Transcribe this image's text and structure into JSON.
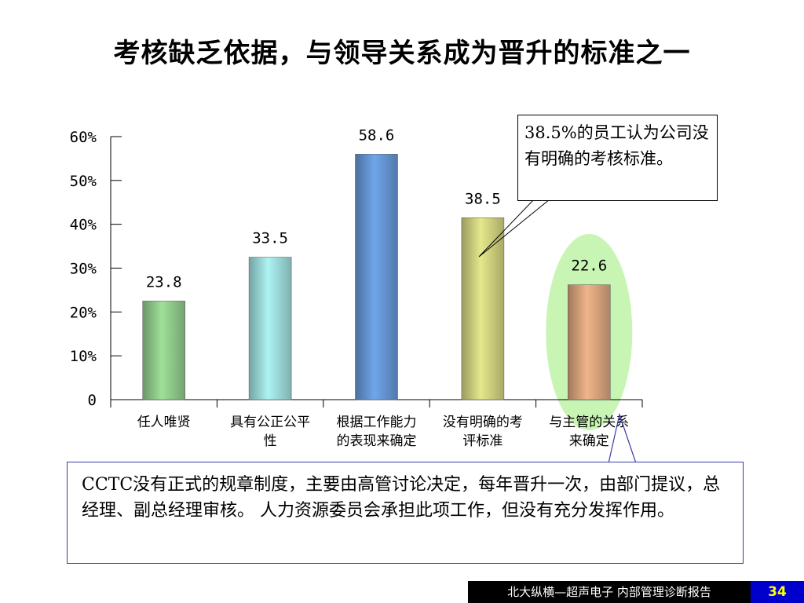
{
  "title": "考核缺乏依据，与领导关系成为晋升的标准之一",
  "callout_text": "38.5%的员工认为公司没有明确的考核标准。",
  "summary_text": "CCTC没有正式的规章制度，主要由高管讨论决定，每年晋升一次，由部门提议，总经理、副总经理审核。 人力资源委员会承担此项工作，但没有充分发挥作用。",
  "footer_text": "北大纵横—超声电子  内部管理诊断报告",
  "page_number": "34",
  "chart_data": {
    "type": "bar",
    "categories": [
      "任人唯贤",
      "具有公正公平性",
      "根据工作能力的表现来确定",
      "没有明确的考评标准",
      "与主管的关系来确定"
    ],
    "values": [
      23.8,
      33.5,
      58.6,
      38.5,
      22.6
    ],
    "data_labels": [
      "23.8",
      "33.5",
      "58.6",
      "38.5",
      "22.6"
    ],
    "y_ticks": [
      "0",
      "10%",
      "20%",
      "30%",
      "40%",
      "50%",
      "60%"
    ],
    "ylim": [
      0,
      60
    ],
    "grid": false,
    "highlighted_category": "与主管的关系来确定",
    "colors": {
      "bars": [
        "#9fe09a",
        "#aef3f3",
        "#6fa6ea",
        "#e6e88c",
        "#f0b58a"
      ],
      "highlight": "#c8f5b4"
    }
  }
}
